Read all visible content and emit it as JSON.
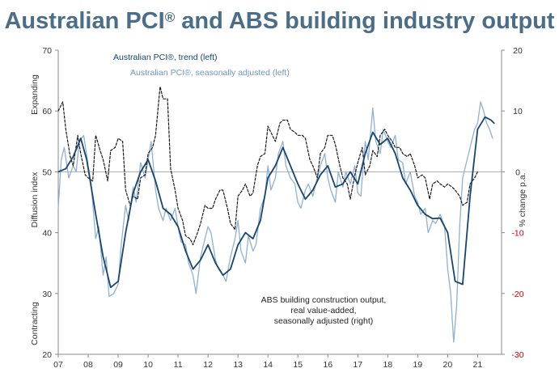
{
  "chart_data": {
    "type": "line",
    "title_main": "Australian PCI",
    "title_reg": "®",
    "title_rest": " and ABS building industry output",
    "x_tick_labels": [
      "07",
      "08",
      "09",
      "10",
      "11",
      "12",
      "13",
      "14",
      "15",
      "16",
      "17",
      "18",
      "19",
      "20",
      "21"
    ],
    "left_axis": {
      "title": "Diffusion index",
      "ylim": [
        20,
        70
      ],
      "ticks": [
        70,
        60,
        50,
        40,
        30,
        20
      ],
      "upper_label": "Expanding",
      "lower_label": "Contracting"
    },
    "right_axis": {
      "title": "% change p.a.",
      "ylim": [
        -30,
        20
      ],
      "ticks": [
        20,
        10,
        0,
        -10,
        -20,
        -30
      ],
      "negative_color": "#cc0000"
    },
    "annotation": [
      "ABS building construction output,",
      "real value-added,",
      "seasonally adjusted (right)"
    ],
    "colors": {
      "trend": "#17456f",
      "sa": "#8fb1d3",
      "abs": "#1a1a1a",
      "title": "#4a6d88",
      "zero_line": "#aaaaaa"
    },
    "series": [
      {
        "name": "Australian PCI®, trend (left)",
        "axis": "left",
        "style": "solid-dark",
        "x": [
          7.0,
          7.25,
          7.5,
          7.75,
          7.95,
          8.25,
          8.5,
          8.75,
          9.0,
          9.25,
          9.5,
          9.75,
          10.0,
          10.25,
          10.5,
          10.75,
          11.0,
          11.25,
          11.5,
          11.75,
          12.0,
          12.25,
          12.5,
          12.75,
          13.0,
          13.25,
          13.5,
          13.75,
          14.0,
          14.25,
          14.5,
          14.75,
          15.0,
          15.25,
          15.5,
          15.75,
          16.0,
          16.25,
          16.5,
          16.75,
          17.0,
          17.25,
          17.5,
          17.75,
          18.0,
          18.25,
          18.5,
          18.75,
          19.0,
          19.25,
          19.5,
          19.75,
          20.0,
          20.25,
          20.5,
          20.75,
          21.0,
          21.25,
          21.45,
          21.55
        ],
        "y": [
          50.0,
          50.5,
          52.5,
          55.5,
          52.0,
          43.0,
          36.0,
          31.0,
          32.0,
          40.0,
          46.5,
          50.0,
          52.0,
          48.5,
          44.0,
          43.0,
          41.0,
          37.0,
          34.0,
          35.5,
          38.0,
          35.0,
          33.0,
          34.0,
          38.0,
          40.0,
          39.0,
          42.0,
          49.0,
          51.0,
          54.0,
          51.0,
          48.0,
          45.5,
          47.0,
          49.5,
          51.0,
          47.5,
          48.0,
          50.0,
          48.0,
          53.0,
          56.5,
          54.5,
          55.5,
          53.0,
          49.0,
          47.0,
          44.5,
          43.0,
          42.3,
          42.4,
          40.0,
          32.0,
          31.5,
          46.0,
          57.0,
          59.0,
          58.5,
          58.0
        ]
      },
      {
        "name": "Australian PCI®, seasonally adjusted (left)",
        "axis": "left",
        "style": "solid-light",
        "x": [
          7.0,
          7.1,
          7.2,
          7.35,
          7.5,
          7.6,
          7.7,
          7.85,
          8.0,
          8.1,
          8.25,
          8.35,
          8.5,
          8.6,
          8.7,
          8.85,
          9.0,
          9.1,
          9.25,
          9.35,
          9.5,
          9.6,
          9.75,
          9.9,
          10.1,
          10.25,
          10.35,
          10.5,
          10.6,
          10.75,
          10.9,
          11.0,
          11.1,
          11.25,
          11.35,
          11.5,
          11.6,
          11.75,
          11.9,
          12.0,
          12.1,
          12.25,
          12.35,
          12.5,
          12.6,
          12.75,
          12.9,
          13.0,
          13.1,
          13.25,
          13.35,
          13.5,
          13.6,
          13.75,
          13.9,
          14.0,
          14.1,
          14.25,
          14.35,
          14.5,
          14.6,
          14.75,
          14.9,
          15.0,
          15.1,
          15.25,
          15.35,
          15.5,
          15.6,
          15.75,
          15.9,
          16.0,
          16.1,
          16.25,
          16.35,
          16.5,
          16.6,
          16.75,
          16.9,
          17.0,
          17.1,
          17.25,
          17.35,
          17.5,
          17.6,
          17.75,
          17.85,
          18.0,
          18.1,
          18.25,
          18.35,
          18.5,
          18.6,
          18.75,
          18.9,
          19.0,
          19.1,
          19.25,
          19.35,
          19.5,
          19.6,
          19.75,
          19.9,
          20.0,
          20.1,
          20.2,
          20.3,
          20.4,
          20.5,
          20.6,
          20.75,
          20.9,
          21.0,
          21.1,
          21.2,
          21.3,
          21.4,
          21.5
        ],
        "y": [
          44.0,
          52.0,
          54.0,
          49.0,
          51.0,
          50.0,
          55.0,
          56.0,
          51.0,
          48.0,
          39.0,
          41.0,
          33.0,
          36.0,
          29.5,
          30.0,
          31.5,
          38.0,
          44.5,
          42.0,
          47.5,
          45.0,
          51.5,
          49.0,
          55.0,
          47.0,
          44.0,
          42.0,
          44.0,
          42.0,
          44.0,
          41.0,
          38.5,
          38.0,
          35.0,
          33.0,
          30.0,
          36.0,
          39.0,
          41.0,
          40.0,
          35.5,
          34.0,
          33.0,
          32.0,
          36.0,
          39.0,
          42.0,
          37.0,
          35.0,
          39.5,
          37.0,
          38.0,
          44.0,
          46.0,
          51.0,
          47.0,
          49.0,
          53.0,
          55.0,
          51.0,
          49.0,
          48.0,
          45.0,
          44.0,
          47.0,
          48.0,
          46.0,
          48.0,
          51.0,
          53.0,
          49.0,
          47.0,
          45.0,
          50.0,
          47.5,
          50.0,
          48.0,
          51.0,
          46.5,
          46.0,
          55.0,
          52.0,
          60.5,
          55.0,
          53.0,
          57.0,
          55.0,
          54.0,
          56.0,
          52.0,
          51.5,
          48.0,
          50.0,
          46.0,
          45.0,
          43.0,
          44.0,
          40.0,
          42.0,
          41.5,
          43.0,
          41.0,
          34.0,
          30.0,
          22.0,
          28.0,
          41.0,
          49.0,
          51.0,
          54.0,
          57.0,
          58.0,
          61.5,
          60.0,
          58.0,
          57.0,
          55.5
        ]
      },
      {
        "name": "ABS building construction output, real value-added, seasonally adjusted (right)",
        "axis": "right",
        "style": "dashed-black",
        "x": [
          7.0,
          7.15,
          7.25,
          7.4,
          7.5,
          7.65,
          7.75,
          7.9,
          8.0,
          8.15,
          8.25,
          8.4,
          8.5,
          8.65,
          8.75,
          8.9,
          9.0,
          9.15,
          9.25,
          9.4,
          9.5,
          9.65,
          9.75,
          9.9,
          10.0,
          10.15,
          10.25,
          10.4,
          10.5,
          10.65,
          10.75,
          10.9,
          11.0,
          11.15,
          11.25,
          11.4,
          11.5,
          11.65,
          11.75,
          11.9,
          12.0,
          12.15,
          12.25,
          12.4,
          12.5,
          12.65,
          12.75,
          12.9,
          13.0,
          13.15,
          13.25,
          13.4,
          13.5,
          13.65,
          13.75,
          13.9,
          14.0,
          14.15,
          14.25,
          14.4,
          14.5,
          14.65,
          14.75,
          14.9,
          15.0,
          15.15,
          15.25,
          15.4,
          15.5,
          15.65,
          15.75,
          15.9,
          16.0,
          16.15,
          16.25,
          16.4,
          16.5,
          16.65,
          16.75,
          16.9,
          17.0,
          17.15,
          17.25,
          17.4,
          17.5,
          17.65,
          17.75,
          17.9,
          18.0,
          18.15,
          18.25,
          18.4,
          18.5,
          18.65,
          18.75,
          18.9,
          19.0,
          19.15,
          19.25,
          19.4,
          19.5,
          19.65,
          19.75,
          19.9,
          20.0,
          20.15,
          20.25,
          20.4,
          20.5,
          20.65,
          20.75,
          20.9,
          21.0
        ],
        "y": [
          10.0,
          11.5,
          7.0,
          2.5,
          1.0,
          6.0,
          3.0,
          -0.5,
          -1.0,
          -1.5,
          6.0,
          3.5,
          2.0,
          -1.5,
          3.5,
          4.0,
          5.5,
          5.0,
          -3.0,
          -5.5,
          -4.0,
          -4.5,
          -1.0,
          -0.5,
          3.0,
          4.0,
          6.0,
          14.0,
          12.0,
          12.0,
          0.5,
          -3.0,
          -6.0,
          -8.0,
          -10.5,
          -11.0,
          -12.0,
          -10.0,
          -8.5,
          -5.5,
          -6.0,
          -6.0,
          -4.5,
          -3.0,
          -3.0,
          -6.0,
          -8.5,
          -9.5,
          -4.0,
          -3.0,
          -2.0,
          -4.0,
          -3.5,
          1.0,
          2.5,
          3.0,
          7.5,
          6.0,
          5.0,
          8.0,
          8.5,
          8.5,
          7.0,
          6.5,
          6.0,
          6.0,
          5.5,
          2.0,
          1.0,
          -1.0,
          3.0,
          4.0,
          6.0,
          6.0,
          4.5,
          1.0,
          -1.0,
          -2.0,
          -4.5,
          -0.5,
          1.5,
          4.0,
          -0.5,
          1.0,
          3.5,
          2.5,
          6.0,
          7.0,
          6.0,
          5.0,
          4.0,
          4.0,
          3.0,
          2.5,
          3.0,
          1.0,
          -1.0,
          -0.5,
          -1.0,
          -4.5,
          -2.0,
          -1.5,
          -2.0,
          -2.5,
          -2.0,
          -2.5,
          -3.0,
          -4.0,
          -5.5,
          -5.0,
          -2.0,
          -1.0,
          0.0
        ]
      }
    ]
  }
}
